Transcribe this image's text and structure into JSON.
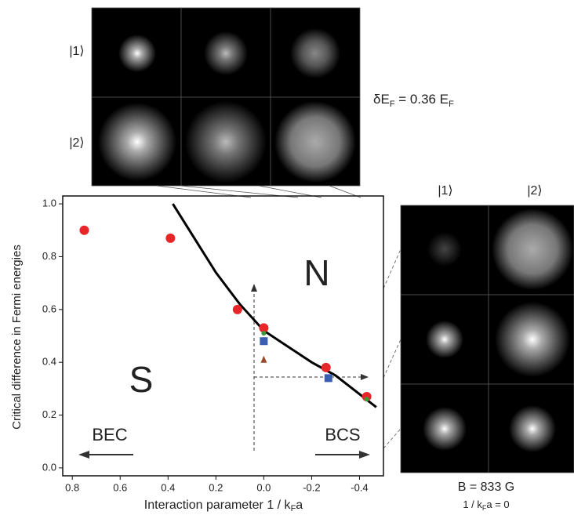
{
  "chart_data": {
    "type": "scatter",
    "xlim": [
      0.84,
      -0.5
    ],
    "ylim": [
      -0.03,
      1.03
    ],
    "xticks": [
      0.8,
      0.6,
      0.4,
      0.2,
      {
        "value": 0,
        "label": "0.0"
      },
      -0.2,
      -0.4
    ],
    "yticks": [
      {
        "value": 0,
        "label": "0.0"
      },
      0.2,
      0.4,
      0.6,
      0.8,
      {
        "value": 1,
        "label": "1.0"
      }
    ],
    "y_label": "Critical difference in Fermi energies",
    "x_label": [
      "Interaction parameter 1 / k",
      "F",
      "a"
    ],
    "annotations": [
      "N",
      "S",
      "BEC",
      "BCS"
    ],
    "series": [
      {
        "marker": "line",
        "color": "#000000",
        "x": [
          0.38,
          0.2,
          0.1,
          0.0,
          -0.1,
          -0.2,
          -0.3,
          -0.47
        ],
        "values": [
          1.0,
          0.74,
          0.62,
          0.52,
          0.46,
          0.4,
          0.35,
          0.23
        ]
      },
      {
        "marker": "circle",
        "color": "#e8262a",
        "x": [
          0.75,
          0.39,
          0.11,
          0.0,
          -0.26,
          -0.43
        ],
        "values": [
          0.9,
          0.87,
          0.6,
          0.53,
          0.38,
          0.27
        ]
      },
      {
        "marker": "square",
        "color": "#3a5fb0",
        "x": [
          0.0,
          -0.27
        ],
        "values": [
          0.48,
          0.34
        ]
      },
      {
        "marker": "dot",
        "color": "#3a9a3a",
        "x": [
          0.0,
          -0.43
        ],
        "values": [
          0.51,
          0.26
        ]
      },
      {
        "marker": "triangle",
        "color": "#9a4a2a",
        "x": [
          0.0
        ],
        "values": [
          0.41
        ]
      }
    ]
  },
  "panels": {
    "top": {
      "row_labels": [
        "|1⟩",
        "|2⟩"
      ],
      "caption": [
        "δE",
        "F",
        " = 0.36 E",
        "F"
      ]
    },
    "right": {
      "column_labels": [
        "|1⟩",
        "|2⟩"
      ],
      "caption": "B = 833 G",
      "subcaption": [
        "1 / k",
        "F",
        "a = 0"
      ]
    }
  }
}
